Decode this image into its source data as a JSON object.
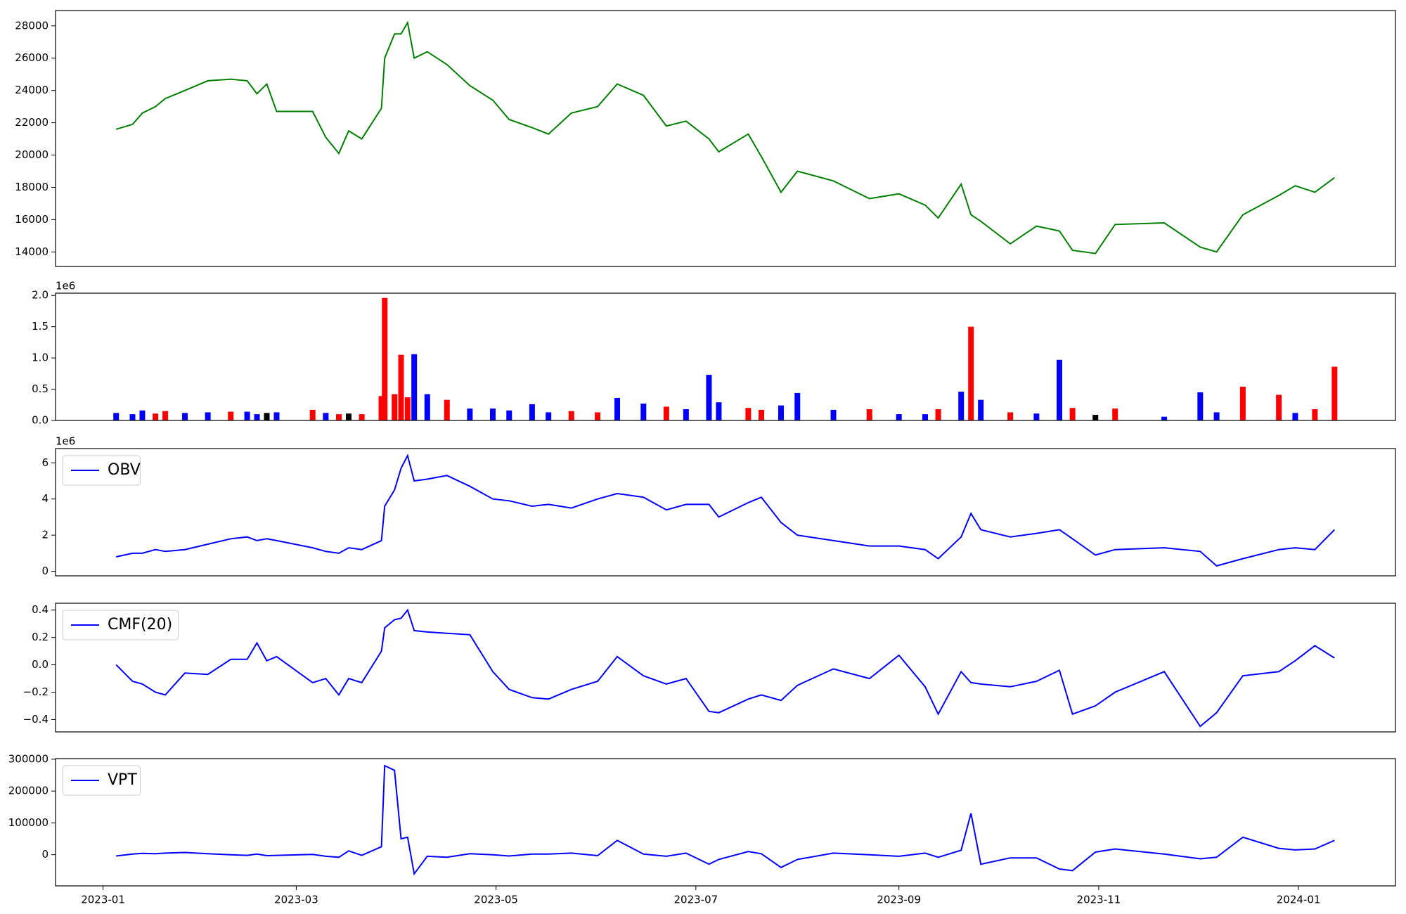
{
  "chart_data": {
    "type": "panels",
    "x": [
      4,
      9,
      12,
      16,
      19,
      25,
      32,
      39,
      44,
      47,
      50,
      53,
      64,
      68,
      72,
      75,
      79,
      85,
      86,
      89,
      91,
      93,
      95,
      99,
      105,
      112,
      119,
      124,
      131,
      136,
      143,
      151,
      157,
      165,
      172,
      178,
      185,
      188,
      197,
      201,
      207,
      212,
      223,
      234,
      243,
      251,
      255,
      262,
      265,
      268,
      277,
      285,
      292,
      296,
      303,
      309,
      324,
      335,
      340,
      348,
      359,
      364,
      370,
      376
    ],
    "xlim": [
      -14.5,
      394.6
    ],
    "xticks": [
      {
        "value": 0,
        "label": "2023-01"
      },
      {
        "value": 59,
        "label": "2023-03"
      },
      {
        "value": 120,
        "label": "2023-05"
      },
      {
        "value": 181,
        "label": "2023-07"
      },
      {
        "value": 243,
        "label": "2023-09"
      },
      {
        "value": 304,
        "label": "2023-11"
      },
      {
        "value": 365,
        "label": "2024-01"
      }
    ],
    "panels": [
      {
        "type": "line",
        "ylim": [
          13100,
          28950
        ],
        "yticks": [
          14000,
          16000,
          18000,
          20000,
          22000,
          24000,
          26000,
          28000
        ],
        "series": [
          {
            "color": "#008000",
            "values": [
              21600,
              21900,
              22600,
              23000,
              23500,
              24000,
              24600,
              24700,
              24600,
              23800,
              24400,
              22700,
              22700,
              21100,
              20100,
              21500,
              21000,
              22900,
              26000,
              27500,
              27500,
              28200,
              26000,
              26400,
              25600,
              24300,
              23400,
              22200,
              21700,
              21300,
              22600,
              23000,
              24400,
              23700,
              21800,
              22100,
              21000,
              20200,
              21300,
              19900,
              17700,
              19000,
              18400,
              17300,
              17600,
              16900,
              16100,
              18200,
              16300,
              15900,
              14500,
              15600,
              15300,
              14100,
              13900,
              15700,
              15800,
              14300,
              14000,
              16300,
              17500,
              18100,
              17700,
              18600
            ]
          }
        ]
      },
      {
        "type": "bar",
        "ylim": [
          0,
          2036000
        ],
        "offset_label": "1e6",
        "yticks": [
          {
            "value": 0,
            "label": "0.0"
          },
          {
            "value": 500000,
            "label": "0.5"
          },
          {
            "value": 1000000,
            "label": "1.0"
          },
          {
            "value": 1500000,
            "label": "1.5"
          },
          {
            "value": 2000000,
            "label": "2.0"
          }
        ],
        "series": [
          {
            "values": [
              120000,
              100000,
              160000,
              110000,
              150000,
              120000,
              130000,
              140000,
              140000,
              100000,
              120000,
              130000,
              170000,
              120000,
              100000,
              110000,
              100000,
              390000,
              1960000,
              420000,
              1050000,
              370000,
              1060000,
              420000,
              330000,
              190000,
              190000,
              160000,
              260000,
              130000,
              150000,
              130000,
              360000,
              270000,
              220000,
              180000,
              730000,
              290000,
              200000,
              170000,
              240000,
              440000,
              170000,
              180000,
              100000,
              100000,
              180000,
              460000,
              1500000,
              330000,
              130000,
              110000,
              970000,
              200000,
              90000,
              190000,
              60000,
              450000,
              130000,
              540000,
              410000,
              120000,
              180000,
              860000
            ],
            "colors": [
              "#0000ff",
              "#0000ff",
              "#0000ff",
              "#ff0000",
              "#ff0000",
              "#0000ff",
              "#0000ff",
              "#ff0000",
              "#0000ff",
              "#0000ff",
              "#000000",
              "#0000ff",
              "#ff0000",
              "#0000ff",
              "#ff0000",
              "#000000",
              "#ff0000",
              "#ff0000",
              "#ff0000",
              "#ff0000",
              "#ff0000",
              "#ff0000",
              "#0000ff",
              "#0000ff",
              "#ff0000",
              "#0000ff",
              "#0000ff",
              "#0000ff",
              "#0000ff",
              "#0000ff",
              "#ff0000",
              "#ff0000",
              "#0000ff",
              "#0000ff",
              "#ff0000",
              "#0000ff",
              "#0000ff",
              "#0000ff",
              "#ff0000",
              "#ff0000",
              "#0000ff",
              "#0000ff",
              "#0000ff",
              "#ff0000",
              "#0000ff",
              "#0000ff",
              "#ff0000",
              "#0000ff",
              "#ff0000",
              "#0000ff",
              "#ff0000",
              "#0000ff",
              "#0000ff",
              "#ff0000",
              "#000000",
              "#ff0000",
              "#0000ff",
              "#0000ff",
              "#0000ff",
              "#ff0000",
              "#ff0000",
              "#0000ff",
              "#ff0000",
              "#ff0000"
            ]
          }
        ]
      },
      {
        "type": "line",
        "ylim": [
          -250000,
          6790000
        ],
        "offset_label": "1e6",
        "legend": "upper left",
        "yticks": [
          {
            "value": 0,
            "label": "0"
          },
          {
            "value": 2000000,
            "label": "2"
          },
          {
            "value": 4000000,
            "label": "4"
          },
          {
            "value": 6000000,
            "label": "6"
          }
        ],
        "series": [
          {
            "name": "OBV",
            "color": "#0000ff",
            "values": [
              800000,
              1000000,
              1000000,
              1200000,
              1100000,
              1200000,
              1500000,
              1800000,
              1900000,
              1700000,
              1800000,
              1700000,
              1300000,
              1100000,
              1000000,
              1300000,
              1200000,
              1700000,
              3600000,
              4500000,
              5700000,
              6400000,
              5000000,
              5100000,
              5300000,
              4700000,
              4000000,
              3900000,
              3600000,
              3700000,
              3500000,
              4000000,
              4300000,
              4100000,
              3400000,
              3700000,
              3700000,
              3000000,
              3800000,
              4100000,
              2700000,
              2000000,
              1700000,
              1400000,
              1400000,
              1200000,
              700000,
              1900000,
              3200000,
              2300000,
              1900000,
              2100000,
              2300000,
              1800000,
              900000,
              1200000,
              1300000,
              1100000,
              300000,
              700000,
              1200000,
              1300000,
              1200000,
              2300000
            ]
          }
        ]
      },
      {
        "type": "line",
        "ylim": [
          -0.49,
          0.45
        ],
        "legend": "upper left",
        "yticks": [
          {
            "value": -0.4,
            "label": "−0.4"
          },
          {
            "value": -0.2,
            "label": "−0.2"
          },
          {
            "value": 0,
            "label": "0.0"
          },
          0.2,
          0.4
        ],
        "series": [
          {
            "name": "CMF(20)",
            "color": "#0000ff",
            "values": [
              0.0,
              -0.12,
              -0.14,
              -0.2,
              -0.22,
              -0.06,
              -0.07,
              0.04,
              0.04,
              0.16,
              0.03,
              0.06,
              -0.13,
              -0.1,
              -0.22,
              -0.1,
              -0.13,
              0.1,
              0.27,
              0.33,
              0.34,
              0.4,
              0.25,
              0.24,
              0.23,
              0.22,
              -0.05,
              -0.18,
              -0.24,
              -0.25,
              -0.18,
              -0.12,
              0.06,
              -0.08,
              -0.14,
              -0.1,
              -0.34,
              -0.35,
              -0.25,
              -0.22,
              -0.26,
              -0.15,
              -0.03,
              -0.1,
              0.07,
              -0.16,
              -0.36,
              -0.05,
              -0.13,
              -0.14,
              -0.16,
              -0.12,
              -0.04,
              -0.36,
              -0.3,
              -0.2,
              -0.05,
              -0.45,
              -0.35,
              -0.08,
              -0.05,
              0.03,
              0.14,
              0.05
            ]
          }
        ]
      },
      {
        "type": "line",
        "ylim": [
          -98000,
          302000
        ],
        "legend": "upper left",
        "yticks": [
          0,
          100000,
          200000,
          300000
        ],
        "series": [
          {
            "name": "VPT",
            "color": "#0000ff",
            "values": [
              -4000,
              2000,
              4000,
              3000,
              5000,
              7000,
              3000,
              0,
              -2000,
              2000,
              -3000,
              -2000,
              1000,
              -5000,
              -8000,
              12000,
              -2000,
              25000,
              280000,
              265000,
              50000,
              55000,
              -60000,
              -5000,
              -8000,
              3000,
              0,
              -4000,
              2000,
              2000,
              5000,
              -3000,
              45000,
              2000,
              -5000,
              5000,
              -30000,
              -15000,
              10000,
              3000,
              -40000,
              -15000,
              5000,
              0,
              -5000,
              5000,
              -8000,
              14000,
              130000,
              -30000,
              -10000,
              -10000,
              -45000,
              -50000,
              8000,
              18000,
              2000,
              -13000,
              -8000,
              55000,
              20000,
              15000,
              18000,
              45000
            ]
          }
        ]
      }
    ]
  }
}
